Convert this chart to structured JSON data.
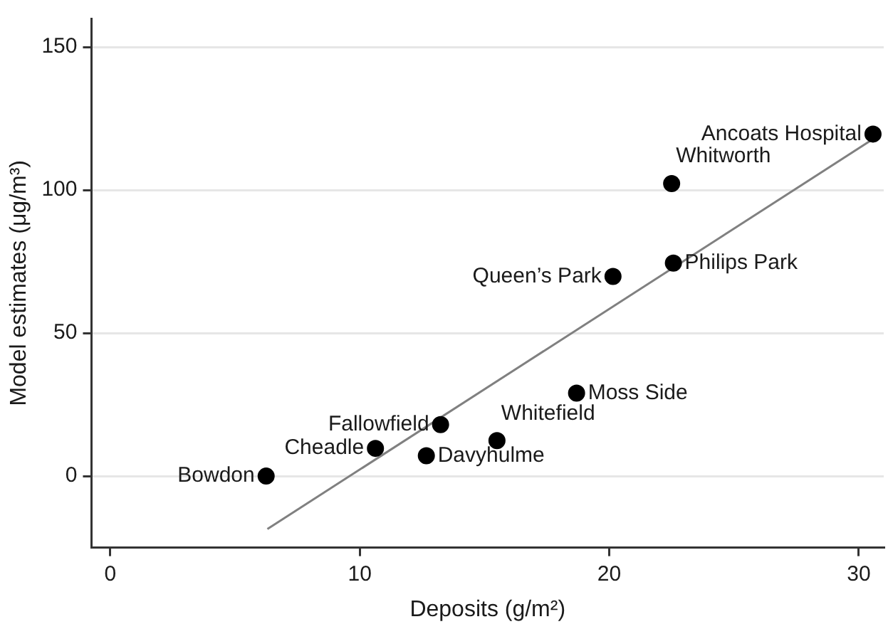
{
  "chart_data": {
    "type": "scatter",
    "xlabel": "Deposits (g/m²)",
    "ylabel": "Model estimates (μg/m³)",
    "x": [
      6.25,
      10.63,
      13.24,
      12.67,
      15.5,
      18.69,
      20.15,
      22.57,
      22.5,
      30.57
    ],
    "series": [
      {
        "color": "#000000",
        "values": [
          0,
          9.7,
          18,
          7.1,
          12.4,
          29.0,
          69.8,
          74.5,
          102.3,
          119.6
        ]
      },
      {
        "type": "line",
        "marker": "none",
        "color": "#808080",
        "x": [
          6.3,
          30.6
        ],
        "values": [
          -18.5,
          118
        ]
      }
    ],
    "annotations": [
      {
        "text": "Bowdon",
        "x": 6.25,
        "y": 0
      },
      {
        "text": "Cheadle",
        "x": 10.63,
        "y": 9.7
      },
      {
        "text": "Fallowfield",
        "x": 13.24,
        "y": 18
      },
      {
        "text": "Davyhulme",
        "x": 12.67,
        "y": 7.1
      },
      {
        "text": "Whitefield",
        "x": 15.5,
        "y": 12.4
      },
      {
        "text": "Moss Side",
        "x": 18.69,
        "y": 29.0
      },
      {
        "text": "Queen’s Park",
        "x": 20.15,
        "y": 69.8
      },
      {
        "text": "Philips Park",
        "x": 22.57,
        "y": 74.5
      },
      {
        "text": "Whitworth",
        "x": 22.5,
        "y": 102.3
      },
      {
        "text": "Ancoats Hospital",
        "x": 30.57,
        "y": 119.6
      }
    ],
    "xlim": [
      -0.75,
      31
    ],
    "ylim": [
      -25,
      160
    ],
    "xticks": [
      0,
      10,
      20,
      30
    ],
    "yticks": [
      0,
      50,
      100,
      150
    ],
    "grid": "y",
    "marker": "circle",
    "legend": false
  }
}
